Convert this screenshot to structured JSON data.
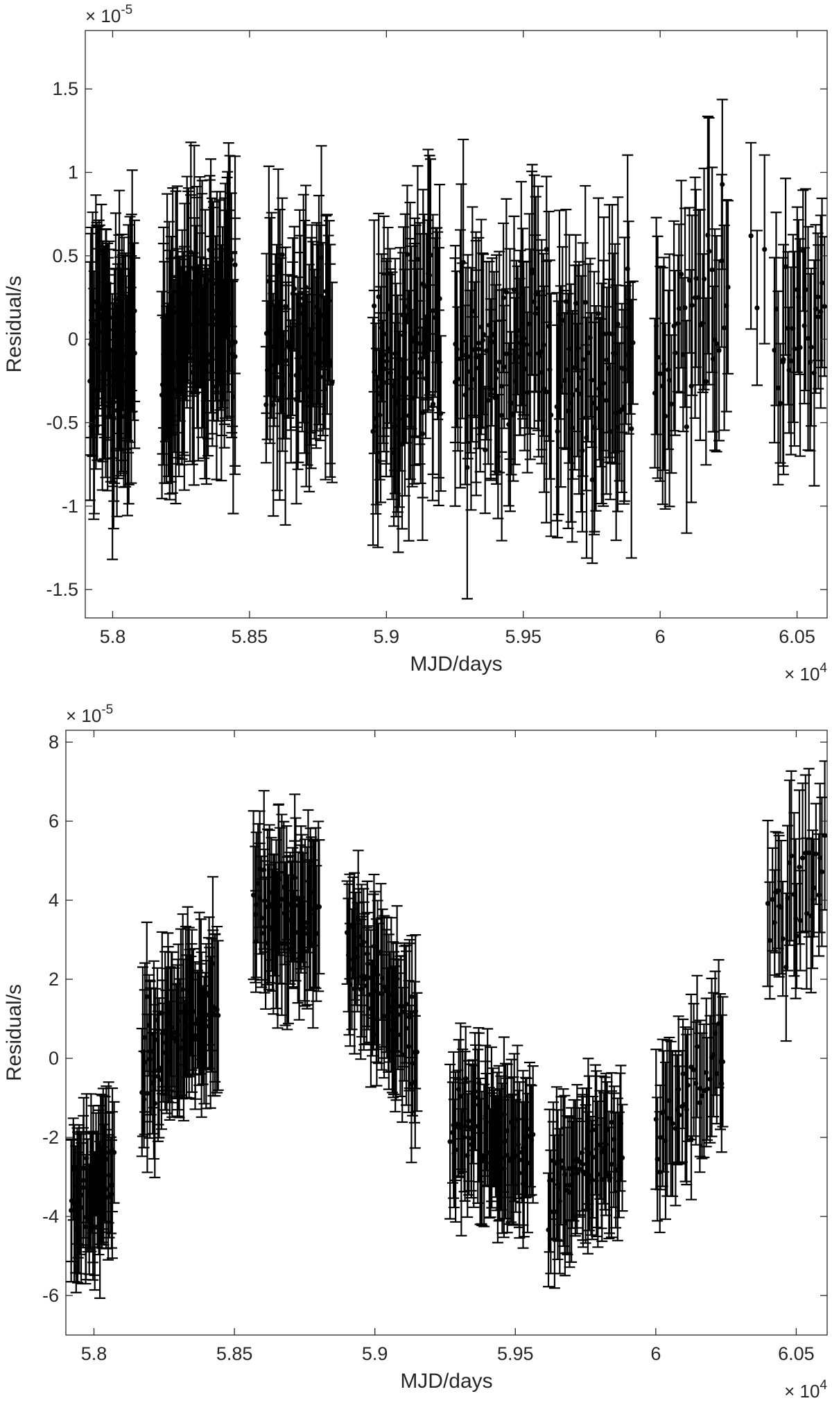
{
  "chart_data": [
    {
      "type": "scatter",
      "title": "",
      "xlabel": "MJD/days",
      "ylabel": "Residual/s",
      "x_exponent_label": "× 10",
      "x_exponent_power": "4",
      "y_exponent_label": "× 10",
      "y_exponent_power": "-5",
      "xlim": [
        57900,
        60610
      ],
      "ylim": [
        -1.67,
        1.85
      ],
      "xticks": [
        58000,
        58500,
        59000,
        59500,
        60000,
        60500
      ],
      "xtick_labels": [
        "5.8",
        "5.85",
        "5.9",
        "5.95",
        "6",
        "6.05"
      ],
      "yticks": [
        -1.5,
        -1,
        -0.5,
        0,
        0.5,
        1,
        1.5
      ],
      "ytick_labels": [
        "-1.5",
        "-1",
        "-0.5",
        "0",
        "0.5",
        "1",
        "1.5"
      ],
      "grid": false,
      "color": "#000000",
      "segments": [
        {
          "x": [
            57920,
            58080
          ],
          "n": 70,
          "center": -0.1,
          "spread": 0.45,
          "err": [
            0.35,
            0.75
          ],
          "slope": 0
        },
        {
          "x": [
            58180,
            58450
          ],
          "n": 100,
          "center": 0.05,
          "spread": 0.45,
          "err": [
            0.35,
            0.75
          ],
          "slope": 0.3
        },
        {
          "x": [
            58560,
            58800
          ],
          "n": 70,
          "center": 0.05,
          "spread": 0.45,
          "err": [
            0.3,
            0.7
          ],
          "slope": 0
        },
        {
          "x": [
            58950,
            59200
          ],
          "n": 75,
          "center": -0.1,
          "spread": 0.5,
          "err": [
            0.35,
            0.75
          ],
          "slope": 0.3
        },
        {
          "x": [
            59250,
            59600
          ],
          "n": 80,
          "center": -0.1,
          "spread": 0.5,
          "err": [
            0.35,
            0.8
          ],
          "slope": 0.2
        },
        {
          "x": [
            59620,
            59900
          ],
          "n": 60,
          "center": -0.2,
          "spread": 0.5,
          "err": [
            0.35,
            0.8
          ],
          "slope": 0
        },
        {
          "x": [
            59980,
            60250
          ],
          "n": 40,
          "center": 0,
          "spread": 0.55,
          "err": [
            0.4,
            0.8
          ],
          "slope": 0.6
        },
        {
          "x": [
            60330,
            60380
          ],
          "n": 3,
          "center": 0.5,
          "spread": 0.5,
          "err": [
            0.45,
            0.6
          ],
          "slope": 0
        },
        {
          "x": [
            60420,
            60600
          ],
          "n": 28,
          "center": 0.1,
          "spread": 0.4,
          "err": [
            0.35,
            0.7
          ],
          "slope": 0.3
        }
      ]
    },
    {
      "type": "scatter",
      "title": "",
      "xlabel": "MJD/days",
      "ylabel": "Residual/s",
      "x_exponent_label": "× 10",
      "x_exponent_power": "4",
      "y_exponent_label": "× 10",
      "y_exponent_power": "-5",
      "xlim": [
        57900,
        60610
      ],
      "ylim": [
        -7,
        8.3
      ],
      "xticks": [
        58000,
        58500,
        59000,
        59500,
        60000,
        60500
      ],
      "xtick_labels": [
        "5.8",
        "5.85",
        "5.9",
        "5.95",
        "6",
        "6.05"
      ],
      "yticks": [
        -6,
        -4,
        -2,
        0,
        2,
        4,
        6,
        8
      ],
      "ytick_labels": [
        "-6",
        "-4",
        "-2",
        "0",
        "2",
        "4",
        "6",
        "8"
      ],
      "grid": false,
      "color": "#000000",
      "segments": [
        {
          "x": [
            57920,
            58070
          ],
          "n": 50,
          "center": -3.3,
          "spread": 0.9,
          "err": [
            1.2,
            2.0
          ],
          "slope": 1.0
        },
        {
          "x": [
            58170,
            58440
          ],
          "n": 80,
          "center": 0.8,
          "spread": 1.0,
          "err": [
            1.2,
            2.2
          ],
          "slope": 1.5
        },
        {
          "x": [
            58570,
            58800
          ],
          "n": 65,
          "center": 3.6,
          "spread": 1.0,
          "err": [
            1.2,
            2.2
          ],
          "slope": 0
        },
        {
          "x": [
            58900,
            59150
          ],
          "n": 70,
          "center": 1.5,
          "spread": 1.0,
          "err": [
            1.2,
            2.0
          ],
          "slope": -2.5
        },
        {
          "x": [
            59270,
            59560
          ],
          "n": 75,
          "center": -2.0,
          "spread": 0.9,
          "err": [
            1.2,
            2.0
          ],
          "slope": -0.5
        },
        {
          "x": [
            59620,
            59880
          ],
          "n": 60,
          "center": -2.8,
          "spread": 0.9,
          "err": [
            1.2,
            2.0
          ],
          "slope": 1.0
        },
        {
          "x": [
            60000,
            60240
          ],
          "n": 40,
          "center": -1.0,
          "spread": 0.9,
          "err": [
            1.2,
            2.0
          ],
          "slope": 2.5
        },
        {
          "x": [
            60400,
            60600
          ],
          "n": 30,
          "center": 4.2,
          "spread": 1.0,
          "err": [
            1.2,
            2.2
          ],
          "slope": 2.0
        }
      ]
    }
  ]
}
